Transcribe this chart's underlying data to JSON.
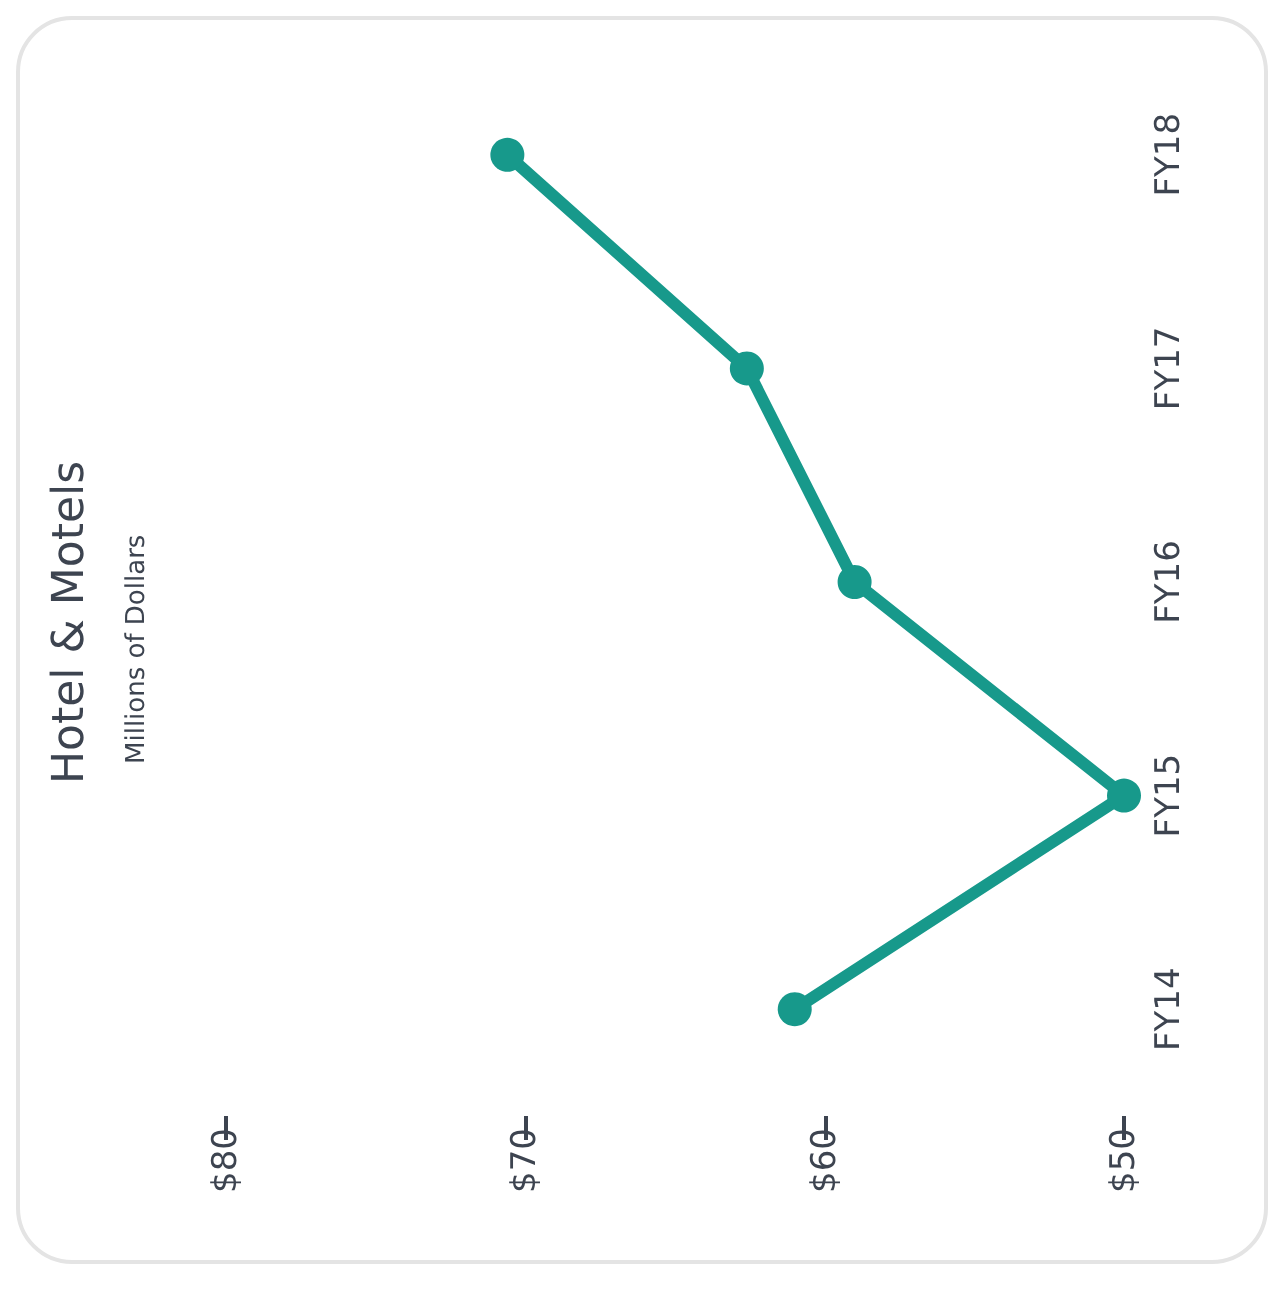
{
  "chart_data": {
    "type": "line",
    "title": "Hotel & Motels",
    "subtitle": "Millions of Dollars",
    "orientation": "horizontal",
    "categories": [
      "FY18",
      "FY17",
      "FY16",
      "FY15",
      "FY14"
    ],
    "series": [
      {
        "color": "#17998b",
        "values": [
          70.6,
          62.6,
          59,
          50,
          61
        ]
      }
    ],
    "xlim": [
      80,
      50
    ],
    "xticks": [
      {
        "value": 80,
        "label": "$80"
      },
      {
        "value": 70,
        "label": "$70"
      },
      {
        "value": 60,
        "label": "$60"
      },
      {
        "value": 50,
        "label": "$50"
      }
    ],
    "grid": false,
    "marker": "circle",
    "line_style": "solid"
  }
}
